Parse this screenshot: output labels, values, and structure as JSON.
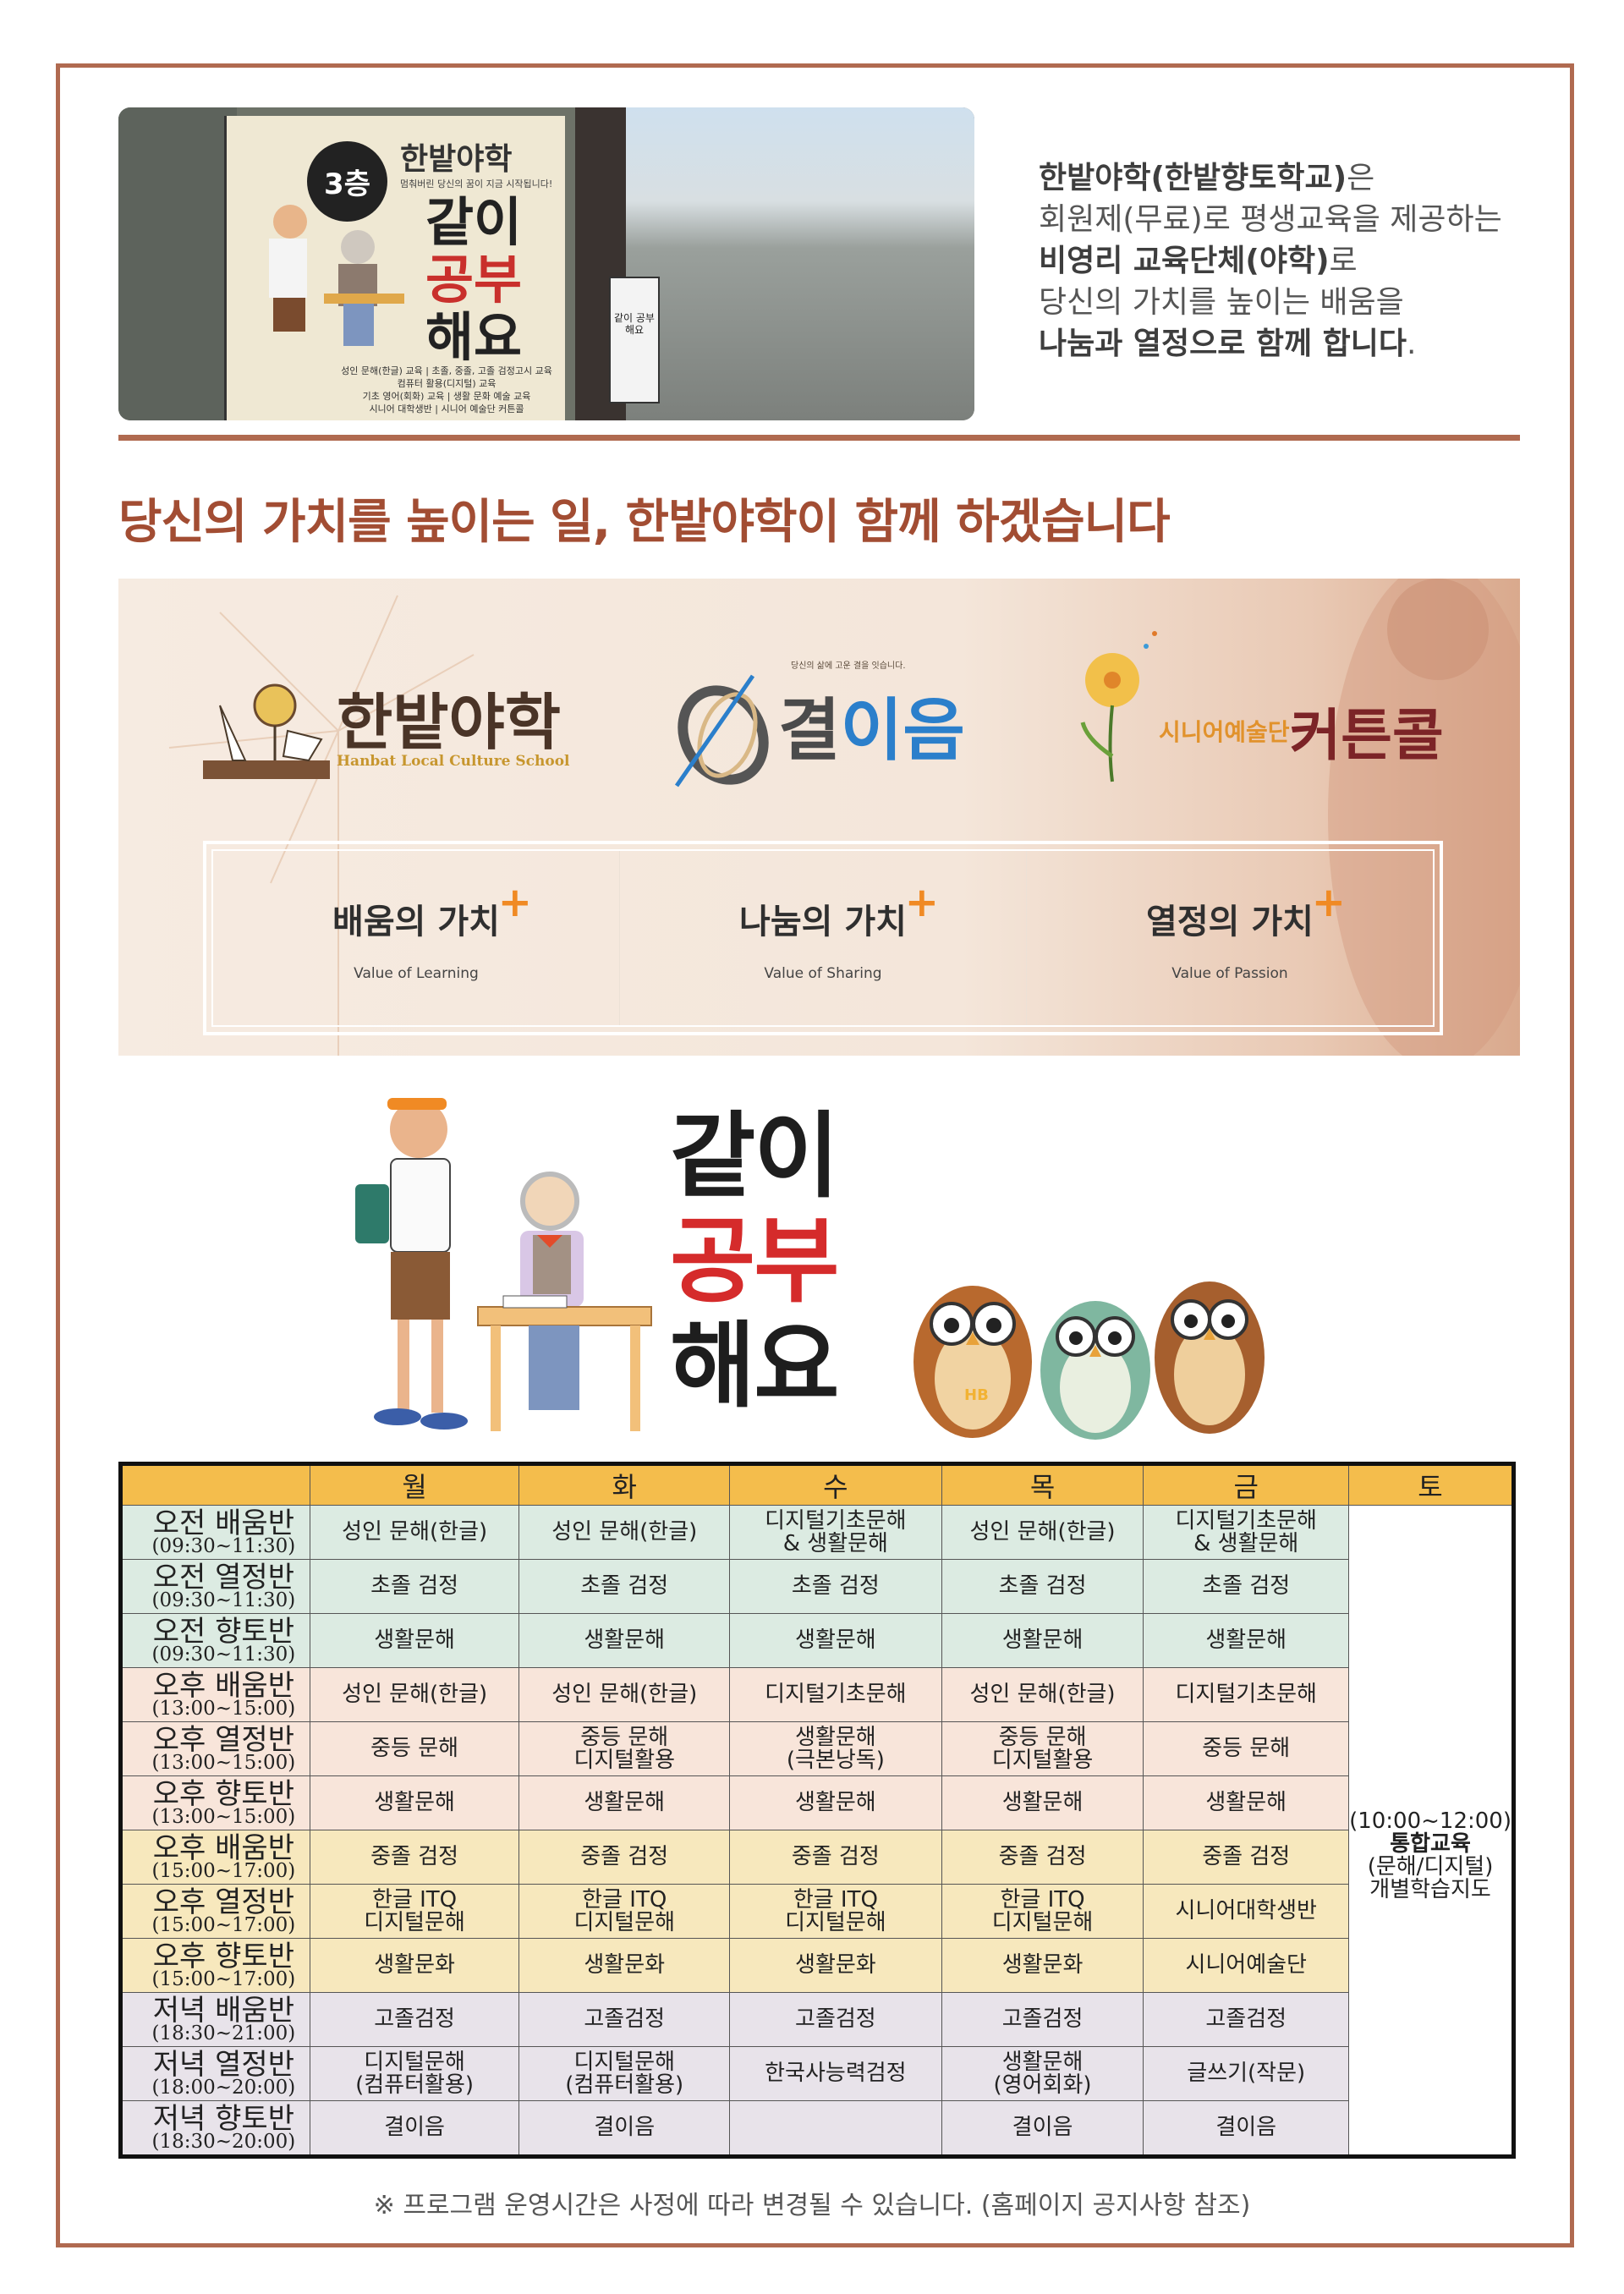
{
  "photo": {
    "floor_badge": "3층",
    "banner_title": "한밭야학",
    "banner_subtitle": "멈춰버린 당신의 꿈이 지금 시작됩니다!",
    "banner_big": [
      "같이",
      "공부",
      "해요"
    ],
    "banner_lines": [
      "성인 문해(한글) 교육 | 초졸, 중졸, 고졸 검정고시 교육",
      "컴퓨터 활용(디지털) 교육",
      "기초 영어(회화) 교육 | 생활 문화 예술 교육",
      "시니어 대학생반 | 시니어 예술단 커튼콜"
    ],
    "sign_text": "같이 공부 해요"
  },
  "intro": {
    "line1_bold": "한밭야학(한밭향토학교)",
    "line1_rest": "은",
    "line2": "회원제(무료)로 평생교육을 제공하는",
    "line3_bold": "비영리 교육단체(야학)",
    "line3_rest": "로",
    "line4": "당신의 가치를 높이는 배움을",
    "line5_bold": "나눔과 열정으로 함께 합니다",
    "line5_rest": "."
  },
  "headline": "당신의 가치를 높이는 일, 한밭야학이 함께 하겠습니다",
  "logos": {
    "hanbat": {
      "title": "한밭야학",
      "subtitle": "Hanbat Local Culture School"
    },
    "gyeol": {
      "title_a": "결",
      "title_b": "이음",
      "tagline": "당신의 삶에 고운 결을 잇습니다."
    },
    "curtain": {
      "prefix": "시니어예술단",
      "title": "커튼콜"
    }
  },
  "values": [
    {
      "title": "배움의 가치",
      "subtitle": "Value of Learning"
    },
    {
      "title": "나눔의 가치",
      "subtitle": "Value of Sharing"
    },
    {
      "title": "열정의 가치",
      "subtitle": "Value of Passion"
    }
  ],
  "illustration": {
    "text": [
      "같이",
      "공부",
      "해요"
    ],
    "owl_badge": "HB"
  },
  "schedule": {
    "days": [
      "월",
      "화",
      "수",
      "목",
      "금",
      "토"
    ],
    "rows": [
      {
        "group": "am",
        "name": "오전 배움반",
        "time": "(09:30~11:30)",
        "cells": [
          "성인 문해(한글)",
          "성인 문해(한글)",
          "디지털기초문해\n& 생활문해",
          "성인 문해(한글)",
          "디지털기초문해\n& 생활문해"
        ]
      },
      {
        "group": "am",
        "name": "오전 열정반",
        "time": "(09:30~11:30)",
        "cells": [
          "초졸 검정",
          "초졸 검정",
          "초졸 검정",
          "초졸 검정",
          "초졸 검정"
        ]
      },
      {
        "group": "am",
        "name": "오전 향토반",
        "time": "(09:30~11:30)",
        "cells": [
          "생활문해",
          "생활문해",
          "생활문해",
          "생활문해",
          "생활문해"
        ]
      },
      {
        "group": "pm1",
        "name": "오후 배움반",
        "time": "(13:00~15:00)",
        "cells": [
          "성인 문해(한글)",
          "성인 문해(한글)",
          "디지털기초문해",
          "성인 문해(한글)",
          "디지털기초문해"
        ]
      },
      {
        "group": "pm1",
        "name": "오후 열정반",
        "time": "(13:00~15:00)",
        "cells": [
          "중등 문해",
          "중등 문해\n디지털활용",
          "생활문해\n(극본낭독)",
          "중등 문해\n디지털활용",
          "중등 문해"
        ]
      },
      {
        "group": "pm1",
        "name": "오후 향토반",
        "time": "(13:00~15:00)",
        "cells": [
          "생활문해",
          "생활문해",
          "생활문해",
          "생활문해",
          "생활문해"
        ]
      },
      {
        "group": "pm2",
        "name": "오후 배움반",
        "time": "(15:00~17:00)",
        "cells": [
          "중졸 검정",
          "중졸 검정",
          "중졸 검정",
          "중졸 검정",
          "중졸 검정"
        ]
      },
      {
        "group": "pm2",
        "name": "오후 열정반",
        "time": "(15:00~17:00)",
        "cells": [
          "한글 ITQ\n디지털문해",
          "한글 ITQ\n디지털문해",
          "한글 ITQ\n디지털문해",
          "한글 ITQ\n디지털문해",
          "시니어대학생반"
        ]
      },
      {
        "group": "pm2",
        "name": "오후 향토반",
        "time": "(15:00~17:00)",
        "cells": [
          "생활문화",
          "생활문화",
          "생활문화",
          "생활문화",
          "시니어예술단"
        ]
      },
      {
        "group": "ev",
        "name": "저녁 배움반",
        "time": "(18:30~21:00)",
        "cells": [
          "고졸검정",
          "고졸검정",
          "고졸검정",
          "고졸검정",
          "고졸검정"
        ]
      },
      {
        "group": "ev",
        "name": "저녁 열정반",
        "time": "(18:00~20:00)",
        "cells": [
          "디지털문해\n(컴퓨터활용)",
          "디지털문해\n(컴퓨터활용)",
          "한국사능력검정",
          "생활문해\n(영어회화)",
          "글쓰기(작문)"
        ]
      },
      {
        "group": "ev",
        "name": "저녁 향토반",
        "time": "(18:30~20:00)",
        "cells": [
          "결이음",
          "결이음",
          "",
          "결이음",
          "결이음"
        ]
      }
    ],
    "saturday": {
      "time": "(10:00~12:00)",
      "title": "통합교육",
      "detail": "(문해/디지털)",
      "detail2": "개별학습지도"
    }
  },
  "note": "※ 프로그램 운영시간은 사정에 따라 변경될 수 있습니다. (홈페이지 공지사항 참조)",
  "colors": {
    "accent": "#b06a50",
    "headline": "#a24d33",
    "header_row": "#f4bd4c",
    "am": "#dcebe2",
    "pm1": "#f8e5da",
    "pm2": "#f7e8bd",
    "evening": "#e8e3ea",
    "plus": "#f08a24"
  }
}
